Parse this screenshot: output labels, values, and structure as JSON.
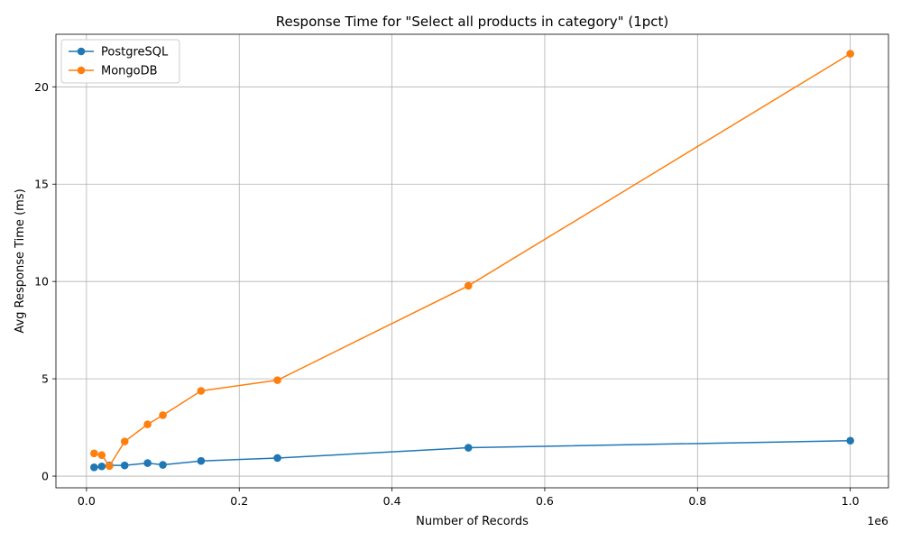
{
  "chart_data": {
    "type": "line",
    "title": "Response Time for \"Select all products in category\" (1pct)",
    "xlabel": "Number of Records",
    "ylabel": "Avg Response Time (ms)",
    "x_offset_text": "1e6",
    "xlim": [
      -0.04,
      1.05
    ],
    "ylim": [
      -0.6,
      22.7
    ],
    "x_ticks": [
      0.0,
      0.2,
      0.4,
      0.6,
      0.8,
      1.0
    ],
    "x_tick_labels": [
      "0.0",
      "0.2",
      "0.4",
      "0.6",
      "0.8",
      "1.0"
    ],
    "y_ticks": [
      0,
      5,
      10,
      15,
      20
    ],
    "y_tick_labels": [
      "0",
      "5",
      "10",
      "15",
      "20"
    ],
    "grid": true,
    "legend_position": "top-left",
    "series": [
      {
        "name": "PostgreSQL",
        "color": "#1f77b4",
        "marker": "circle",
        "x": [
          0.01,
          0.02,
          0.03,
          0.05,
          0.08,
          0.1,
          0.15,
          0.25,
          0.5,
          1.0
        ],
        "values": [
          0.45,
          0.5,
          0.55,
          0.55,
          0.67,
          0.58,
          0.78,
          0.93,
          1.46,
          1.82
        ]
      },
      {
        "name": "MongoDB",
        "color": "#ff7f0e",
        "marker": "circle",
        "x": [
          0.01,
          0.02,
          0.03,
          0.05,
          0.08,
          0.1,
          0.15,
          0.25,
          0.5,
          1.0
        ],
        "values": [
          1.17,
          1.08,
          0.52,
          1.78,
          2.66,
          3.13,
          4.38,
          4.93,
          9.78,
          21.7
        ]
      }
    ]
  }
}
